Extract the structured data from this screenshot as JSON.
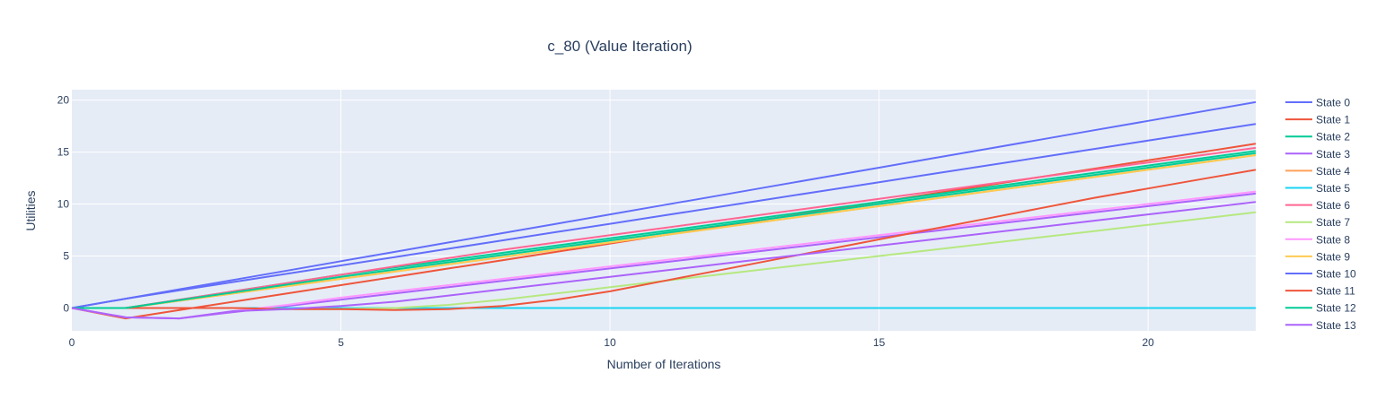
{
  "chart_data": {
    "type": "line",
    "title": "c_80 (Value Iteration)",
    "xlabel": "Number of Iterations",
    "ylabel": "Utilities",
    "xlim": [
      0,
      22
    ],
    "ylim": [
      -2.2,
      21
    ],
    "x_ticks": [
      0,
      5,
      10,
      15,
      20
    ],
    "y_ticks": [
      0,
      5,
      10,
      15,
      20
    ],
    "grid": true,
    "legend_placement": "right",
    "plot_background": "#E5ECF6",
    "x": [
      0,
      1,
      2,
      3,
      4,
      5,
      6,
      7,
      8,
      9,
      10,
      11,
      12,
      13,
      14,
      15,
      16,
      17,
      18,
      19,
      20,
      21,
      22
    ],
    "series": [
      {
        "name": "State 0",
        "color": "#636EFA",
        "values": [
          0,
          0.9,
          1.8,
          2.7,
          3.6,
          4.5,
          5.4,
          6.3,
          7.2,
          8.1,
          9.0,
          9.9,
          10.8,
          11.7,
          12.6,
          13.5,
          14.4,
          15.3,
          16.2,
          17.1,
          18.0,
          18.9,
          19.8
        ]
      },
      {
        "name": "State 1",
        "color": "#EF553B",
        "values": [
          0,
          -1.0,
          -0.2,
          0.6,
          1.4,
          2.2,
          3.0,
          3.8,
          4.6,
          5.4,
          6.2,
          7.0,
          7.8,
          8.6,
          9.4,
          10.2,
          11.0,
          11.8,
          12.6,
          13.4,
          14.2,
          15.0,
          15.8
        ]
      },
      {
        "name": "State 2",
        "color": "#00CC96",
        "values": [
          0,
          0.0,
          0.8,
          1.6,
          2.4,
          3.2,
          3.9,
          4.6,
          5.3,
          6.0,
          6.7,
          7.4,
          8.1,
          8.8,
          9.5,
          10.2,
          10.9,
          11.6,
          12.3,
          13.0,
          13.7,
          14.4,
          15.1
        ]
      },
      {
        "name": "State 3",
        "color": "#AB63FA",
        "values": [
          0,
          -0.9,
          -1.0,
          -0.4,
          0.2,
          0.8,
          1.4,
          2.0,
          2.6,
          3.2,
          3.8,
          4.4,
          5.0,
          5.6,
          6.2,
          6.8,
          7.4,
          8.0,
          8.6,
          9.2,
          9.8,
          10.4,
          11.0
        ]
      },
      {
        "name": "State 4",
        "color": "#FFA15A",
        "values": [
          0,
          0.0,
          0.7,
          1.4,
          2.1,
          2.8,
          3.5,
          4.2,
          4.9,
          5.6,
          6.3,
          7.0,
          7.7,
          8.4,
          9.1,
          9.8,
          10.5,
          11.2,
          11.9,
          12.6,
          13.3,
          14.0,
          14.7
        ]
      },
      {
        "name": "State 5",
        "color": "#19D3F3",
        "values": [
          0,
          0.0,
          0.0,
          0.0,
          0.0,
          0.0,
          0.0,
          0.0,
          0.0,
          0.0,
          0.0,
          0.0,
          0.0,
          0.0,
          0.0,
          0.0,
          0.0,
          0.0,
          0.0,
          0.0,
          0.0,
          0.0,
          0.0
        ]
      },
      {
        "name": "State 6",
        "color": "#FF6692",
        "values": [
          0,
          0.0,
          0.8,
          1.6,
          2.4,
          3.2,
          4.0,
          4.8,
          5.6,
          6.3,
          7.0,
          7.7,
          8.4,
          9.1,
          9.8,
          10.5,
          11.2,
          11.9,
          12.6,
          13.3,
          14.0,
          14.7,
          15.4
        ]
      },
      {
        "name": "State 7",
        "color": "#B6E880",
        "values": [
          0,
          0.0,
          0.0,
          0.0,
          -0.1,
          -0.1,
          0.0,
          0.3,
          0.8,
          1.4,
          2.0,
          2.6,
          3.2,
          3.8,
          4.4,
          5.0,
          5.6,
          6.2,
          6.8,
          7.4,
          8.0,
          8.6,
          9.2
        ]
      },
      {
        "name": "State 8",
        "color": "#FF97FF",
        "values": [
          0,
          -0.9,
          -1.0,
          -0.3,
          0.3,
          1.0,
          1.6,
          2.2,
          2.8,
          3.4,
          4.0,
          4.6,
          5.2,
          5.8,
          6.4,
          7.0,
          7.6,
          8.2,
          8.8,
          9.4,
          10.0,
          10.6,
          11.2
        ]
      },
      {
        "name": "State 9",
        "color": "#FECB52",
        "values": [
          0,
          0.0,
          0.7,
          1.4,
          2.1,
          2.8,
          3.5,
          4.2,
          4.9,
          5.6,
          6.3,
          7.0,
          7.7,
          8.4,
          9.1,
          9.8,
          10.5,
          11.2,
          11.9,
          12.6,
          13.3,
          14.0,
          14.7
        ]
      },
      {
        "name": "State 10",
        "color": "#636EFA",
        "values": [
          0,
          0.9,
          1.7,
          2.5,
          3.3,
          4.1,
          4.9,
          5.7,
          6.5,
          7.3,
          8.1,
          8.9,
          9.7,
          10.5,
          11.3,
          12.1,
          12.9,
          13.7,
          14.5,
          15.3,
          16.1,
          16.9,
          17.7
        ]
      },
      {
        "name": "State 11",
        "color": "#EF553B",
        "values": [
          0,
          0.0,
          0.0,
          0.0,
          -0.1,
          -0.1,
          -0.2,
          -0.1,
          0.2,
          0.8,
          1.6,
          2.6,
          3.6,
          4.6,
          5.6,
          6.6,
          7.6,
          8.6,
          9.6,
          10.6,
          11.5,
          12.4,
          13.3
        ]
      },
      {
        "name": "State 12",
        "color": "#00CC96",
        "values": [
          0,
          0.0,
          0.75,
          1.5,
          2.25,
          3.0,
          3.7,
          4.4,
          5.1,
          5.8,
          6.5,
          7.2,
          7.9,
          8.6,
          9.3,
          10.0,
          10.7,
          11.4,
          12.1,
          12.8,
          13.5,
          14.2,
          14.9
        ]
      },
      {
        "name": "State 13",
        "color": "#AB63FA",
        "values": [
          0,
          -0.9,
          -1.0,
          -0.3,
          -0.1,
          0.2,
          0.6,
          1.2,
          1.8,
          2.4,
          3.0,
          3.6,
          4.2,
          4.8,
          5.4,
          6.0,
          6.6,
          7.2,
          7.8,
          8.4,
          9.0,
          9.6,
          10.2
        ]
      }
    ]
  }
}
